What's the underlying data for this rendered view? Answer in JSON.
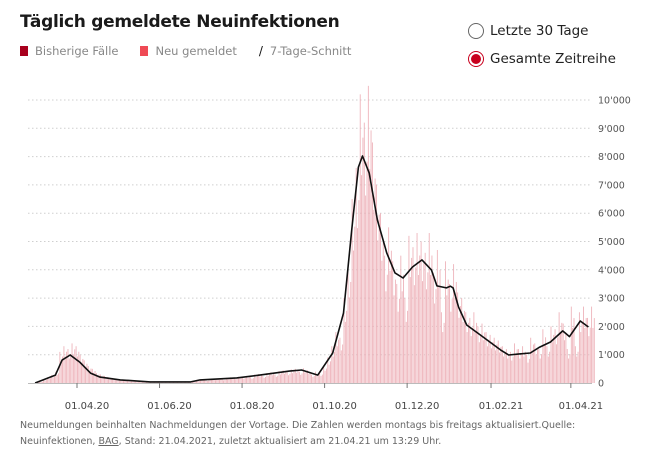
{
  "header": {
    "title": "Täglich gemeldete Neuinfektionen"
  },
  "legend": [
    {
      "label": "Bisherige Fälle",
      "color": "#a8001e",
      "icon": "square"
    },
    {
      "label": "Neu gemeldet",
      "color": "#ef4a55",
      "icon": "square"
    },
    {
      "label": "7-Tage-Schnitt",
      "color": "#111111",
      "icon": "line-slash"
    }
  ],
  "range_options": [
    {
      "label": "Letzte 30 Tage",
      "selected": false
    },
    {
      "label": "Gesamte Zeitreihe",
      "selected": true
    }
  ],
  "footer": {
    "text1": "Neumeldungen beinhalten Nachmeldungen der Vortage. Die Zahlen werden montags bis freitags aktualisiert.Quelle:",
    "text2": "Neuinfektionen, ",
    "link": "BAG",
    "text3": ", Stand: 21.04.2021, zuletzt aktualisiert am 21.04.21 um 13:29 Uhr."
  },
  "chart_data": {
    "type": "bar",
    "title": "Täglich gemeldete Neuinfektionen",
    "ylim": [
      0,
      10500
    ],
    "grid": true,
    "yticks": [
      0,
      1000,
      2000,
      3000,
      4000,
      5000,
      6000,
      7000,
      8000,
      9000,
      10000
    ],
    "ytick_labels": [
      "0",
      "1'000",
      "2'000",
      "3'000",
      "4'000",
      "5'000",
      "6'000",
      "7'000",
      "8'000",
      "9'000",
      "10'000"
    ],
    "xticks": [
      "2020-04-01",
      "2020-06-01",
      "2020-08-01",
      "2020-10-01",
      "2020-12-01",
      "2021-02-01",
      "2021-04-01"
    ],
    "xtick_labels": [
      "01.04.20",
      "01.06.20",
      "01.08.20",
      "01.10.20",
      "01.12.20",
      "01.02.21",
      "01.04.21"
    ],
    "bar_color": "#eeb4bb",
    "line_color": "#111111",
    "bars": {
      "name": "Bisherige Fälle",
      "start": "2020-03-01",
      "step_days": 3,
      "values": [
        20,
        50,
        120,
        200,
        280,
        400,
        1100,
        1300,
        1200,
        1400,
        1300,
        1000,
        800,
        600,
        500,
        350,
        300,
        250,
        200,
        180,
        150,
        120,
        100,
        80,
        70,
        60,
        50,
        40,
        50,
        30,
        40,
        30,
        50,
        40,
        30,
        50,
        40,
        60,
        50,
        80,
        120,
        130,
        100,
        150,
        140,
        160,
        130,
        180,
        200,
        190,
        220,
        210,
        250,
        200,
        300,
        320,
        250,
        350,
        380,
        300,
        420,
        450,
        380,
        480,
        500,
        400,
        520,
        450,
        300,
        400,
        350,
        600,
        900,
        1300,
        1800,
        1600,
        3000,
        4200,
        6500,
        7600,
        10200,
        9200,
        10500,
        8500,
        7000,
        6000,
        4500,
        5500,
        4300,
        3500,
        4500,
        3000,
        5200,
        4800,
        5300,
        5000,
        4600,
        5300,
        3900,
        4700,
        2500,
        4300,
        3500,
        4200,
        3200,
        3000,
        2500,
        2300,
        2500,
        2000,
        2100,
        1800,
        1700,
        1600,
        1500,
        1300,
        1200,
        1100,
        1400,
        1200,
        1300,
        1000,
        1600,
        1400,
        1200,
        1900,
        1300,
        2000,
        1900,
        2500,
        2100,
        1200,
        2700,
        1300,
        2500,
        2700,
        2300,
        2700
      ]
    },
    "line": {
      "name": "7-Tage-Schnitt",
      "points": [
        [
          "2020-03-01",
          0
        ],
        [
          "2020-03-16",
          280
        ],
        [
          "2020-03-21",
          810
        ],
        [
          "2020-03-27",
          990
        ],
        [
          "2020-04-03",
          740
        ],
        [
          "2020-04-11",
          350
        ],
        [
          "2020-04-18",
          210
        ],
        [
          "2020-05-03",
          110
        ],
        [
          "2020-05-25",
          40
        ],
        [
          "2020-06-24",
          40
        ],
        [
          "2020-07-01",
          110
        ],
        [
          "2020-07-28",
          180
        ],
        [
          "2020-08-14",
          280
        ],
        [
          "2020-09-05",
          420
        ],
        [
          "2020-09-14",
          460
        ],
        [
          "2020-09-26",
          280
        ],
        [
          "2020-10-07",
          1060
        ],
        [
          "2020-10-15",
          2470
        ],
        [
          "2020-10-21",
          5400
        ],
        [
          "2020-10-26",
          7630
        ],
        [
          "2020-10-29",
          8020
        ],
        [
          "2020-11-03",
          7420
        ],
        [
          "2020-11-09",
          5760
        ],
        [
          "2020-11-16",
          4590
        ],
        [
          "2020-11-22",
          3890
        ],
        [
          "2020-11-28",
          3710
        ],
        [
          "2020-12-05",
          4100
        ],
        [
          "2020-12-12",
          4350
        ],
        [
          "2020-12-19",
          3990
        ],
        [
          "2020-12-23",
          3430
        ],
        [
          "2020-12-30",
          3360
        ],
        [
          "2021-01-02",
          3420
        ],
        [
          "2021-01-04",
          3360
        ],
        [
          "2021-01-08",
          2690
        ],
        [
          "2021-01-14",
          2050
        ],
        [
          "2021-01-24",
          1700
        ],
        [
          "2021-02-08",
          1170
        ],
        [
          "2021-02-14",
          990
        ],
        [
          "2021-02-22",
          1030
        ],
        [
          "2021-03-02",
          1060
        ],
        [
          "2021-03-09",
          1270
        ],
        [
          "2021-03-17",
          1450
        ],
        [
          "2021-03-26",
          1840
        ],
        [
          "2021-03-31",
          1640
        ],
        [
          "2021-04-08",
          2190
        ],
        [
          "2021-04-14",
          1980
        ]
      ]
    }
  }
}
